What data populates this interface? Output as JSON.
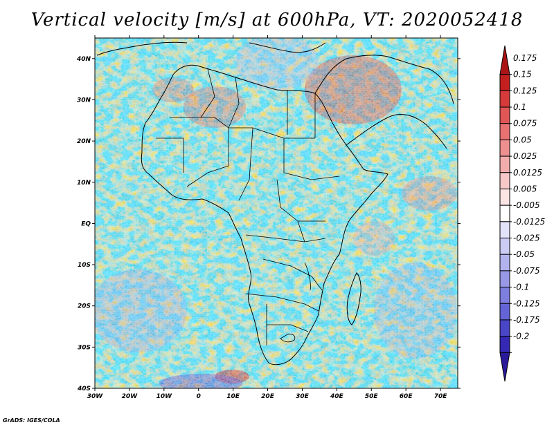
{
  "title": "Vertical velocity [m/s] at 600hPa, VT: 2020052418",
  "credit": "GrADS: IGES/COLA",
  "colors": {
    "positive_high": "#b01818",
    "positive_low": "#f5c8c8",
    "neutral": "#ffffff",
    "negative_low": "#ccccf5",
    "negative_high": "#2a1a9a"
  },
  "map_data": {
    "type": "heatmap",
    "variable": "Vertical velocity",
    "units": "m/s",
    "level": "600hPa",
    "valid_time": "2020052418",
    "lon_range": [
      -30,
      75
    ],
    "lat_range": [
      -40,
      45
    ],
    "x_ticks": [
      {
        "value": -30,
        "label": "30W"
      },
      {
        "value": -20,
        "label": "20W"
      },
      {
        "value": -10,
        "label": "10W"
      },
      {
        "value": 0,
        "label": "0"
      },
      {
        "value": 10,
        "label": "10E"
      },
      {
        "value": 20,
        "label": "20E"
      },
      {
        "value": 30,
        "label": "30E"
      },
      {
        "value": 40,
        "label": "40E"
      },
      {
        "value": 50,
        "label": "50E"
      },
      {
        "value": 60,
        "label": "60E"
      },
      {
        "value": 70,
        "label": "70E"
      }
    ],
    "y_ticks": [
      {
        "value": 40,
        "label": "40N"
      },
      {
        "value": 30,
        "label": "30N"
      },
      {
        "value": 20,
        "label": "20N"
      },
      {
        "value": 10,
        "label": "10N"
      },
      {
        "value": 0,
        "label": "EQ"
      },
      {
        "value": -10,
        "label": "10S"
      },
      {
        "value": -20,
        "label": "20S"
      },
      {
        "value": -30,
        "label": "30S"
      },
      {
        "value": -40,
        "label": "40S"
      }
    ],
    "colorbar": {
      "labels": [
        "0.175",
        "0.15",
        "0.125",
        "0.1",
        "0.075",
        "0.05",
        "0.025",
        "0.0125",
        "0.005",
        "-0.005",
        "-0.0125",
        "-0.025",
        "-0.05",
        "-0.075",
        "-0.1",
        "-0.125",
        "-0.175",
        "-0.2"
      ],
      "colors": [
        "#aa1414",
        "#c41f1f",
        "#d63a3a",
        "#e05555",
        "#e87272",
        "#ee9090",
        "#f3acac",
        "#f7c8c8",
        "#fbe4e4",
        "#ffffff",
        "#e2e2fa",
        "#cbcbf4",
        "#b2b2ee",
        "#9898e6",
        "#7e7edf",
        "#6464d6",
        "#4a46c8",
        "#3528b4",
        "#2a1a9a"
      ]
    }
  }
}
